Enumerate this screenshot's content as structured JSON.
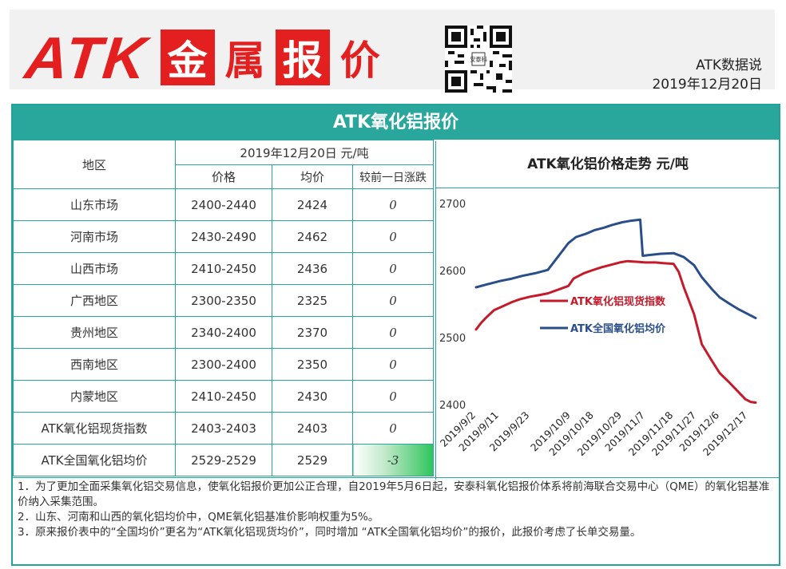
{
  "brand": {
    "logo_latin": "ATK",
    "logo_chars": [
      "金",
      "属",
      "报",
      "价"
    ],
    "source": "ATK数据说",
    "date": "2019年12月20日",
    "qr_caption": "安泰科"
  },
  "panel": {
    "title": "ATK氧化铝报价",
    "header_region": "地区",
    "header_date": "2019年12月20日   元/吨",
    "header_price": "价格",
    "header_avg": "均价",
    "header_change": "较前一日涨跌",
    "rows": [
      {
        "region": "山东市场",
        "price": "2400-2440",
        "avg": "2424",
        "change": "0"
      },
      {
        "region": "河南市场",
        "price": "2430-2490",
        "avg": "2462",
        "change": "0"
      },
      {
        "region": "山西市场",
        "price": "2410-2450",
        "avg": "2436",
        "change": "0"
      },
      {
        "region": "广西地区",
        "price": "2300-2350",
        "avg": "2325",
        "change": "0"
      },
      {
        "region": "贵州地区",
        "price": "2340-2400",
        "avg": "2370",
        "change": "0"
      },
      {
        "region": "西南地区",
        "price": "2300-2400",
        "avg": "2350",
        "change": "0"
      },
      {
        "region": "内蒙地区",
        "price": "2410-2450",
        "avg": "2430",
        "change": "0"
      },
      {
        "region": "ATK氧化铝现货指数",
        "price": "2403-2403",
        "avg": "2403",
        "change": "0"
      },
      {
        "region": "ATK全国氧化铝均价",
        "price": "2529-2529",
        "avg": "2529",
        "change": "-3"
      }
    ],
    "notes": [
      "1．为了更加全面采集氧化铝交易信息，使氧化铝报价更加公正合理，自2019年5月6日起，安泰科氧化铝报价体系将前海联合交易中心（QME）的氧化铝基准价纳入采集范围。",
      "2．山东、河南和山西的氧化铝均价中，QME氧化铝基准价影响权重为5%。",
      "3．原来报价表中的“全国均价”更名为“ATK氧化铝现货均价”，同时增加 “ATK全国氧化铝均价”的报价，此报价考虑了长单交易量。"
    ]
  },
  "chart_data": {
    "type": "line",
    "title": "ATK氧化铝价格走势  元/吨",
    "xlabel": "",
    "ylabel": "",
    "ylim": [
      2400,
      2700
    ],
    "yticks": [
      2400,
      2500,
      2600,
      2700
    ],
    "x_ticks": [
      "2019/9/2",
      "2019/9/11",
      "2019/9/23",
      "2019/10/9",
      "2019/10/18",
      "2019/10/29",
      "2019/11/7",
      "2019/11/18",
      "2019/11/27",
      "2019/12/6",
      "2019/12/17"
    ],
    "x_range": [
      "2019/9/2",
      "2019/12/20"
    ],
    "grid": false,
    "legend_position": "center-right",
    "series": [
      {
        "name": "ATK氧化铝现货指数",
        "color": "#c41a2b",
        "x": [
          "2019/9/2",
          "2019/9/4",
          "2019/9/6",
          "2019/9/9",
          "2019/9/12",
          "2019/9/16",
          "2019/9/19",
          "2019/9/23",
          "2019/9/26",
          "2019/9/30",
          "2019/10/8",
          "2019/10/10",
          "2019/10/14",
          "2019/10/17",
          "2019/10/21",
          "2019/10/24",
          "2019/10/28",
          "2019/10/31",
          "2019/11/4",
          "2019/11/7",
          "2019/11/11",
          "2019/11/14",
          "2019/11/18",
          "2019/11/20",
          "2019/11/22",
          "2019/11/26",
          "2019/11/29",
          "2019/12/3",
          "2019/12/6",
          "2019/12/10",
          "2019/12/13",
          "2019/12/16",
          "2019/12/18",
          "2019/12/20"
        ],
        "y": [
          2512,
          2522,
          2530,
          2541,
          2546,
          2553,
          2557,
          2561,
          2563,
          2566,
          2577,
          2588,
          2596,
          2600,
          2605,
          2608,
          2612,
          2614,
          2613,
          2612,
          2612,
          2611,
          2610,
          2598,
          2575,
          2535,
          2490,
          2465,
          2447,
          2432,
          2420,
          2408,
          2404,
          2403
        ]
      },
      {
        "name": "ATK全国氧化铝均价",
        "color": "#2a4e8a",
        "x": [
          "2019/9/2",
          "2019/9/6",
          "2019/9/11",
          "2019/9/16",
          "2019/9/20",
          "2019/9/25",
          "2019/9/30",
          "2019/10/8",
          "2019/10/11",
          "2019/10/15",
          "2019/10/18",
          "2019/10/22",
          "2019/10/25",
          "2019/10/29",
          "2019/11/1",
          "2019/11/5",
          "2019/11/6",
          "2019/11/8",
          "2019/11/13",
          "2019/11/18",
          "2019/11/22",
          "2019/11/26",
          "2019/11/29",
          "2019/12/3",
          "2019/12/6",
          "2019/12/10",
          "2019/12/13",
          "2019/12/17",
          "2019/12/20"
        ],
        "y": [
          2575,
          2579,
          2584,
          2588,
          2592,
          2596,
          2601,
          2641,
          2650,
          2655,
          2660,
          2664,
          2668,
          2672,
          2674,
          2676,
          2622,
          2623,
          2625,
          2626,
          2620,
          2608,
          2590,
          2572,
          2560,
          2550,
          2543,
          2535,
          2529
        ]
      }
    ]
  }
}
